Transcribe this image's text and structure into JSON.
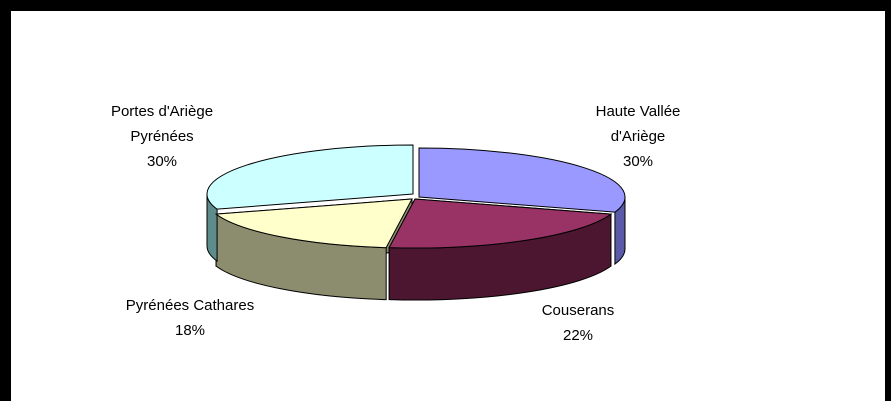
{
  "chart_data": {
    "type": "pie",
    "title": "",
    "style": "3d-exploded",
    "slices": [
      {
        "label": [
          "Haute Vallée",
          "d'Ariège"
        ],
        "percent": "30%",
        "value": 30,
        "color": "#9999ff",
        "side_color": "#5a5aa8"
      },
      {
        "label": [
          "Couserans"
        ],
        "percent": "22%",
        "value": 22,
        "color": "#993366",
        "side_color": "#4d1630"
      },
      {
        "label": [
          "Pyrénées Cathares"
        ],
        "percent": "18%",
        "value": 18,
        "color": "#ffffcc",
        "side_color": "#8c8c6e"
      },
      {
        "label": [
          "Portes d'Ariège",
          "Pyrénées"
        ],
        "percent": "30%",
        "value": 30,
        "color": "#ccffff",
        "side_color": "#5e8c8c"
      }
    ]
  }
}
